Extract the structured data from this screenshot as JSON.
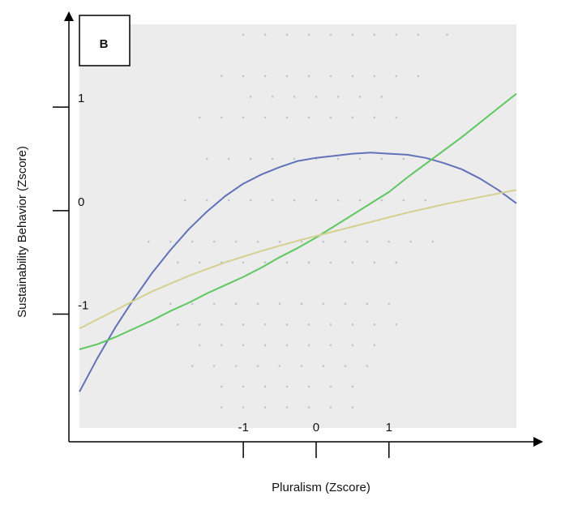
{
  "chart_data": {
    "type": "line",
    "panel_label": "B",
    "xlabel": "Pluralism (Zscore)",
    "ylabel": "Sustainability Behavior (Zscore)",
    "xlim": [
      -3.25,
      2.75
    ],
    "ylim": [
      -2.1,
      1.8
    ],
    "x_ticks": [
      -1,
      0,
      1
    ],
    "y_ticks": [
      1,
      0,
      -1
    ],
    "x_tick_labels": [
      "-1",
      "0",
      "1"
    ],
    "y_tick_labels": [
      "1",
      "0",
      "-1"
    ],
    "grid": false,
    "plot_background": "#ececec",
    "scatter_points": {
      "color": "#c4c4c4",
      "x": [
        -1.0,
        -0.7,
        -0.4,
        -0.1,
        0.2,
        0.5,
        0.8,
        1.1,
        1.4,
        1.8,
        -1.3,
        -1.0,
        -0.7,
        -0.4,
        -0.1,
        0.2,
        0.5,
        0.8,
        1.1,
        1.4,
        -0.9,
        -0.6,
        -0.3,
        0.0,
        0.3,
        0.6,
        0.9,
        -1.6,
        -1.3,
        -1.0,
        -0.7,
        -0.4,
        -0.1,
        0.2,
        0.5,
        0.8,
        1.1,
        -1.5,
        -1.2,
        -0.9,
        -0.6,
        -0.3,
        0.0,
        0.3,
        0.6,
        0.9,
        1.2,
        -1.8,
        -1.5,
        -1.2,
        -0.9,
        -0.6,
        -0.3,
        0.0,
        0.3,
        0.6,
        0.9,
        1.2,
        1.5,
        -2.3,
        -2.0,
        -1.7,
        -1.4,
        -1.1,
        -0.8,
        -0.5,
        -0.2,
        0.1,
        0.4,
        0.7,
        1.0,
        1.3,
        1.6,
        -1.9,
        -1.6,
        -1.3,
        -1.0,
        -0.7,
        -0.4,
        -0.1,
        0.2,
        0.5,
        0.8,
        1.1,
        -2.0,
        -1.7,
        -1.4,
        -1.1,
        -0.8,
        -0.5,
        -0.2,
        0.1,
        0.4,
        0.7,
        1.0,
        -1.9,
        -1.6,
        -1.3,
        -1.0,
        -0.7,
        -0.4,
        -0.1,
        0.2,
        0.5,
        0.8,
        1.1,
        -1.6,
        -1.3,
        -1.0,
        -0.7,
        -0.4,
        -0.1,
        0.2,
        0.5,
        0.8,
        -1.7,
        -1.4,
        -1.1,
        -0.8,
        -0.5,
        -0.2,
        0.1,
        0.4,
        0.7,
        -1.3,
        -1.0,
        -0.7,
        -0.4,
        -0.1,
        0.2,
        0.5,
        -1.3,
        -1.0,
        -0.7,
        -0.4,
        -0.1,
        0.2,
        0.5
      ],
      "y": [
        1.7,
        1.7,
        1.7,
        1.7,
        1.7,
        1.7,
        1.7,
        1.7,
        1.7,
        1.7,
        1.3,
        1.3,
        1.3,
        1.3,
        1.3,
        1.3,
        1.3,
        1.3,
        1.3,
        1.3,
        1.1,
        1.1,
        1.1,
        1.1,
        1.1,
        1.1,
        1.1,
        0.9,
        0.9,
        0.9,
        0.9,
        0.9,
        0.9,
        0.9,
        0.9,
        0.9,
        0.9,
        0.5,
        0.5,
        0.5,
        0.5,
        0.5,
        0.5,
        0.5,
        0.5,
        0.5,
        0.5,
        0.1,
        0.1,
        0.1,
        0.1,
        0.1,
        0.1,
        0.1,
        0.1,
        0.1,
        0.1,
        0.1,
        0.1,
        -0.3,
        -0.3,
        -0.3,
        -0.3,
        -0.3,
        -0.3,
        -0.3,
        -0.3,
        -0.3,
        -0.3,
        -0.3,
        -0.3,
        -0.3,
        -0.3,
        -0.5,
        -0.5,
        -0.5,
        -0.5,
        -0.5,
        -0.5,
        -0.5,
        -0.5,
        -0.5,
        -0.5,
        -0.5,
        -0.9,
        -0.9,
        -0.9,
        -0.9,
        -0.9,
        -0.9,
        -0.9,
        -0.9,
        -0.9,
        -0.9,
        -0.9,
        -1.1,
        -1.1,
        -1.1,
        -1.1,
        -1.1,
        -1.1,
        -1.1,
        -1.1,
        -1.1,
        -1.1,
        -1.1,
        -1.3,
        -1.3,
        -1.3,
        -1.3,
        -1.3,
        -1.3,
        -1.3,
        -1.3,
        -1.3,
        -1.5,
        -1.5,
        -1.5,
        -1.5,
        -1.5,
        -1.5,
        -1.5,
        -1.5,
        -1.5,
        -1.7,
        -1.7,
        -1.7,
        -1.7,
        -1.7,
        -1.7,
        -1.7,
        -1.9,
        -1.9,
        -1.9,
        -1.9,
        -1.9,
        -1.9,
        -1.9
      ]
    },
    "series": [
      {
        "color": "#6272b8",
        "x": [
          -3.25,
          -3.0,
          -2.75,
          -2.5,
          -2.25,
          -2.0,
          -1.75,
          -1.5,
          -1.25,
          -1.0,
          -0.75,
          -0.5,
          -0.25,
          0.0,
          0.25,
          0.5,
          0.75,
          1.0,
          1.25,
          1.5,
          1.75,
          2.0,
          2.25,
          2.5,
          2.75
        ],
        "values": [
          -1.75,
          -1.42,
          -1.12,
          -0.85,
          -0.6,
          -0.38,
          -0.18,
          -0.01,
          0.14,
          0.26,
          0.35,
          0.42,
          0.48,
          0.51,
          0.53,
          0.55,
          0.56,
          0.55,
          0.54,
          0.51,
          0.46,
          0.4,
          0.31,
          0.2,
          0.07
        ]
      },
      {
        "color": "#5ec760",
        "x": [
          -3.25,
          -3.0,
          -2.75,
          -2.5,
          -2.25,
          -2.0,
          -1.75,
          -1.5,
          -1.25,
          -1.0,
          -0.75,
          -0.5,
          -0.25,
          0.0,
          0.25,
          0.5,
          0.75,
          1.0,
          1.25,
          1.5,
          1.75,
          2.0,
          2.25,
          2.5,
          2.75
        ],
        "values": [
          -1.34,
          -1.29,
          -1.22,
          -1.14,
          -1.06,
          -0.97,
          -0.89,
          -0.8,
          -0.72,
          -0.64,
          -0.55,
          -0.45,
          -0.36,
          -0.26,
          -0.15,
          -0.04,
          0.07,
          0.18,
          0.32,
          0.45,
          0.58,
          0.71,
          0.85,
          0.99,
          1.13
        ]
      },
      {
        "color": "#d6d090",
        "x": [
          -3.25,
          -2.75,
          -2.25,
          -1.75,
          -1.25,
          -0.75,
          -0.25,
          0.25,
          0.75,
          1.25,
          1.75,
          2.25,
          2.75
        ],
        "values": [
          -1.14,
          -0.96,
          -0.78,
          -0.63,
          -0.5,
          -0.39,
          -0.29,
          -0.2,
          -0.11,
          -0.02,
          0.06,
          0.13,
          0.2
        ]
      }
    ]
  }
}
